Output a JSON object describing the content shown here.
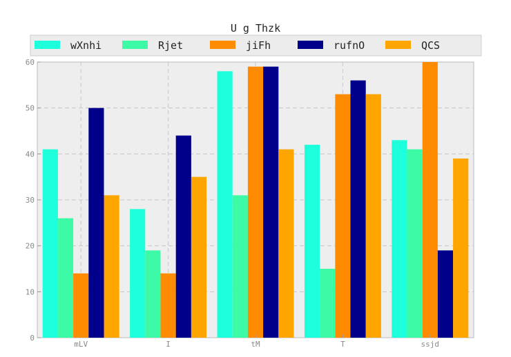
{
  "chart_data": {
    "type": "bar",
    "title": "U  g Thzk",
    "xlabel": "",
    "ylabel": "",
    "categories": [
      "mLV",
      "I",
      "tM",
      "T",
      "ssjd"
    ],
    "ylim": [
      0,
      60
    ],
    "yticks": [
      0,
      10,
      20,
      30,
      40,
      50,
      60
    ],
    "grid": true,
    "legend_position": "top",
    "series": [
      {
        "name": "wXnhi",
        "color": "#1effdc",
        "values": [
          41,
          28,
          58,
          42,
          43
        ]
      },
      {
        "name": "Rjet",
        "color": "#3dfaa6",
        "values": [
          26,
          19,
          31,
          15,
          41
        ]
      },
      {
        "name": "jiFh",
        "color": "#ff8c00",
        "values": [
          14,
          14,
          59,
          53,
          60
        ]
      },
      {
        "name": "rufnO",
        "color": "#00008b",
        "values": [
          50,
          44,
          59,
          56,
          19
        ]
      },
      {
        "name": "QCS",
        "color": "#ffa500",
        "values": [
          31,
          35,
          41,
          53,
          39
        ]
      }
    ]
  }
}
